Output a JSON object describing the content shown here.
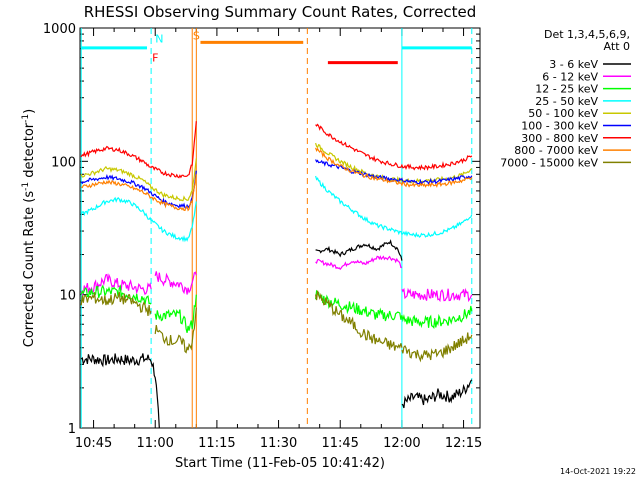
{
  "chart_data": {
    "type": "line",
    "title": "RHESSI Observing Summary Count Rates, Corrected",
    "xlabel": "Start Time (11-Feb-05 10:41:42)",
    "ylabel": "Corrected Count Rate (s⁻¹ detector⁻¹)",
    "ylabel_main": "Corrected Count Rate (s",
    "ylabel_mid": " detector",
    "ylabel_end": ")",
    "ylabel_sup": "-1",
    "y_scale": "log",
    "ylim": [
      1,
      1000
    ],
    "xlim": [
      "10:41:42",
      "12:19:30"
    ],
    "x_ticks": [
      "10:45",
      "11:00",
      "11:15",
      "11:30",
      "11:45",
      "12:00",
      "12:15"
    ],
    "y_ticks": [
      "1",
      "10",
      "100",
      "1000"
    ],
    "legend_header": [
      "Det 1,3,4,5,6,9,",
      "Att 0"
    ],
    "legend_position": "right",
    "timestamp": "14-Oct-2021 19:22",
    "flags": [
      {
        "label": "N",
        "color": "#00ffff",
        "start": "11:01",
        "end": "11:01"
      },
      {
        "label": "F",
        "color": "#ff0000",
        "start": "11:00",
        "end": "11:01"
      },
      {
        "label": "S",
        "color": "#ff8000",
        "start": "11:10",
        "end": "11:36"
      }
    ],
    "flag_bars": [
      {
        "color": "#00ffff",
        "start": "10:42",
        "end": "10:58",
        "level": 710
      },
      {
        "color": "#ff8000",
        "start": "11:11",
        "end": "11:36",
        "level": 780
      },
      {
        "color": "#ff0000",
        "start": "11:42",
        "end": "11:59",
        "level": 550
      },
      {
        "color": "#00ffff",
        "start": "12:00",
        "end": "12:17",
        "level": 710
      }
    ],
    "markers": [
      {
        "time": "10:42",
        "color": "#00ffff",
        "style": "solid"
      },
      {
        "time": "10:59",
        "color": "#00ffff",
        "style": "dashed"
      },
      {
        "time": "11:09",
        "color": "#ff8000",
        "style": "solid"
      },
      {
        "time": "11:10",
        "color": "#ff8000",
        "style": "solid"
      },
      {
        "time": "11:37",
        "color": "#ff8000",
        "style": "dashed"
      },
      {
        "time": "12:00",
        "color": "#00ffff",
        "style": "solid"
      },
      {
        "time": "12:17",
        "color": "#00ffff",
        "style": "dashed"
      }
    ],
    "series": [
      {
        "name": "3 - 6 keV",
        "color": "#000000",
        "segments": [
          {
            "x": [
              "10:42",
              "10:45",
              "10:48",
              "10:51",
              "10:54",
              "10:57",
              "10:59",
              "11:00",
              "11:01"
            ],
            "y": [
              3.3,
              3.3,
              3.2,
              3.3,
              3.2,
              3.3,
              3.3,
              2.5,
              1
            ]
          },
          {
            "x": [
              "11:39",
              "11:42",
              "11:45",
              "11:48",
              "11:51",
              "11:54",
              "11:57",
              "11:59",
              "12:00"
            ],
            "y": [
              21,
              22,
              20,
              22,
              24,
              22,
              25,
              22,
              18
            ]
          },
          {
            "x": [
              "12:00",
              "12:03",
              "12:06",
              "12:09",
              "12:12",
              "12:15",
              "12:17"
            ],
            "y": [
              1.5,
              1.7,
              1.6,
              1.8,
              1.7,
              1.9,
              2.3
            ]
          }
        ]
      },
      {
        "name": "6 - 12 keV",
        "color": "#ff00ff",
        "segments": [
          {
            "x": [
              "10:42",
              "10:45",
              "10:48",
              "10:51",
              "10:54",
              "10:57",
              "10:59"
            ],
            "y": [
              11,
              11.5,
              13,
              12,
              11.5,
              11,
              11
            ]
          },
          {
            "x": [
              "11:00",
              "11:02",
              "11:04",
              "11:06",
              "11:08",
              "11:09",
              "11:10"
            ],
            "y": [
              14,
              13,
              12.5,
              12,
              11,
              12.5,
              14
            ]
          },
          {
            "x": [
              "11:39",
              "11:42",
              "11:45",
              "11:48",
              "11:51",
              "11:54",
              "11:57",
              "11:59",
              "12:00"
            ],
            "y": [
              18,
              17,
              16,
              18,
              17,
              19,
              19,
              18,
              16
            ]
          },
          {
            "x": [
              "12:00",
              "12:03",
              "12:06",
              "12:09",
              "12:12",
              "12:15",
              "12:17"
            ],
            "y": [
              10,
              10,
              10,
              10,
              10,
              10,
              10
            ]
          }
        ]
      },
      {
        "name": "12 - 25 keV",
        "color": "#00ff00",
        "segments": [
          {
            "x": [
              "10:42",
              "10:45",
              "10:48",
              "10:51",
              "10:54",
              "10:57",
              "10:59"
            ],
            "y": [
              10,
              10.5,
              10.5,
              10.5,
              10,
              9.5,
              8.5
            ]
          },
          {
            "x": [
              "11:00",
              "11:02",
              "11:04",
              "11:06",
              "11:08",
              "11:09",
              "11:10"
            ],
            "y": [
              7,
              7,
              7,
              7,
              5.5,
              6,
              10
            ]
          },
          {
            "x": [
              "11:39",
              "11:42",
              "11:45",
              "11:48",
              "11:51",
              "11:54",
              "11:57",
              "11:59",
              "12:00"
            ],
            "y": [
              10,
              9,
              8.5,
              8,
              7.5,
              7,
              7,
              7,
              7
            ]
          },
          {
            "x": [
              "12:00",
              "12:03",
              "12:06",
              "12:09",
              "12:12",
              "12:15",
              "12:17"
            ],
            "y": [
              6.5,
              6.3,
              6.2,
              6.3,
              6.5,
              7,
              7.5
            ]
          }
        ]
      },
      {
        "name": "25 - 50 keV",
        "color": "#00ffff",
        "segments": [
          {
            "x": [
              "10:42",
              "10:45",
              "10:48",
              "10:51",
              "10:54",
              "10:57",
              "10:59",
              "11:02",
              "11:05",
              "11:08",
              "11:09",
              "11:10"
            ],
            "y": [
              40,
              44,
              50,
              52,
              49,
              42,
              36,
              30,
              27,
              26,
              32,
              50
            ]
          },
          {
            "x": [
              "11:39",
              "11:42",
              "11:45",
              "11:48",
              "11:51",
              "11:54",
              "11:57",
              "12:00",
              "12:03",
              "12:06",
              "12:09",
              "12:12",
              "12:15",
              "12:17"
            ],
            "y": [
              75,
              60,
              50,
              43,
              37,
              33,
              31,
              29,
              28,
              28,
              29,
              31,
              35,
              40
            ]
          }
        ]
      },
      {
        "name": "50 - 100 keV",
        "color": "#c8c800",
        "segments": [
          {
            "x": [
              "10:42",
              "10:45",
              "10:48",
              "10:51",
              "10:54",
              "10:57",
              "10:59",
              "11:02",
              "11:05",
              "11:08",
              "11:09",
              "11:10"
            ],
            "y": [
              78,
              82,
              88,
              86,
              80,
              72,
              64,
              56,
              53,
              52,
              60,
              105
            ]
          },
          {
            "x": [
              "11:39",
              "11:42",
              "11:45",
              "11:48",
              "11:51",
              "11:54",
              "11:57",
              "12:00",
              "12:03",
              "12:06",
              "12:09",
              "12:12",
              "12:15",
              "12:17"
            ],
            "y": [
              135,
              115,
              100,
              90,
              82,
              77,
              74,
              72,
              71,
              72,
              73,
              75,
              80,
              88
            ]
          }
        ]
      },
      {
        "name": "100 - 300 keV",
        "color": "#0000ff",
        "segments": [
          {
            "x": [
              "10:42",
              "10:45",
              "10:48",
              "10:51",
              "10:54",
              "10:57",
              "10:59",
              "11:02",
              "11:05",
              "11:08",
              "11:09",
              "11:10"
            ],
            "y": [
              70,
              73,
              76,
              74,
              70,
              64,
              58,
              50,
              47,
              46,
              52,
              85
            ]
          },
          {
            "x": [
              "11:39",
              "11:42",
              "11:45",
              "11:48",
              "11:51",
              "11:54",
              "11:57",
              "12:00",
              "12:03",
              "12:06",
              "12:09",
              "12:12",
              "12:15",
              "12:17"
            ],
            "y": [
              100,
              95,
              90,
              84,
              80,
              76,
              74,
              72,
              70,
              70,
              71,
              73,
              76,
              78
            ]
          }
        ]
      },
      {
        "name": "300 - 800 keV",
        "color": "#ff0000",
        "segments": [
          {
            "x": [
              "10:42",
              "10:45",
              "10:48",
              "10:51",
              "10:54",
              "10:57",
              "10:59",
              "11:02",
              "11:05",
              "11:08",
              "11:09",
              "11:10"
            ],
            "y": [
              110,
              118,
              125,
              122,
              112,
              100,
              90,
              82,
              78,
              78,
              95,
              200
            ]
          },
          {
            "x": [
              "11:39",
              "11:42",
              "11:45",
              "11:48",
              "11:51",
              "11:54",
              "11:57",
              "12:00",
              "12:03",
              "12:06",
              "12:09",
              "12:12",
              "12:15",
              "12:17"
            ],
            "y": [
              190,
              160,
              140,
              125,
              112,
              102,
              96,
              92,
              90,
              90,
              92,
              96,
              102,
              110
            ]
          }
        ]
      },
      {
        "name": "800 - 7000 keV",
        "color": "#ff8000",
        "segments": [
          {
            "x": [
              "10:42",
              "10:45",
              "10:48",
              "10:51",
              "10:54",
              "10:57",
              "10:59",
              "11:02",
              "11:05",
              "11:08",
              "11:09",
              "11:10"
            ],
            "y": [
              64,
              67,
              70,
              68,
              64,
              59,
              54,
              48,
              45,
              44,
              50,
              80
            ]
          },
          {
            "x": [
              "11:39",
              "11:42",
              "11:45",
              "11:48",
              "11:51",
              "11:54",
              "11:57",
              "12:00",
              "12:03",
              "12:06",
              "12:09",
              "12:12",
              "12:15",
              "12:17"
            ],
            "y": [
              125,
              105,
              92,
              84,
              78,
              74,
              71,
              68,
              66,
              66,
              67,
              69,
              72,
              76
            ]
          }
        ]
      },
      {
        "name": "7000 - 15000 keV",
        "color": "#808000",
        "segments": [
          {
            "x": [
              "10:42",
              "10:45",
              "10:48",
              "10:51",
              "10:54",
              "10:57",
              "10:59"
            ],
            "y": [
              9,
              9.5,
              9,
              9.5,
              9,
              8,
              7.5
            ]
          },
          {
            "x": [
              "11:00",
              "11:02",
              "11:04",
              "11:06",
              "11:08",
              "11:09",
              "11:10"
            ],
            "y": [
              5.5,
              4.8,
              4.5,
              4.5,
              3.8,
              4.5,
              8
            ]
          },
          {
            "x": [
              "11:39",
              "11:42",
              "11:45",
              "11:48",
              "11:51",
              "11:54",
              "11:57",
              "11:59",
              "12:00"
            ],
            "y": [
              10,
              8.5,
              7,
              6,
              5,
              4.5,
              4.2,
              4,
              4
            ]
          },
          {
            "x": [
              "12:00",
              "12:03",
              "12:06",
              "12:09",
              "12:12",
              "12:15",
              "12:17"
            ],
            "y": [
              4,
              3.6,
              3.5,
              3.6,
              4,
              4.5,
              5
            ]
          }
        ]
      }
    ]
  }
}
